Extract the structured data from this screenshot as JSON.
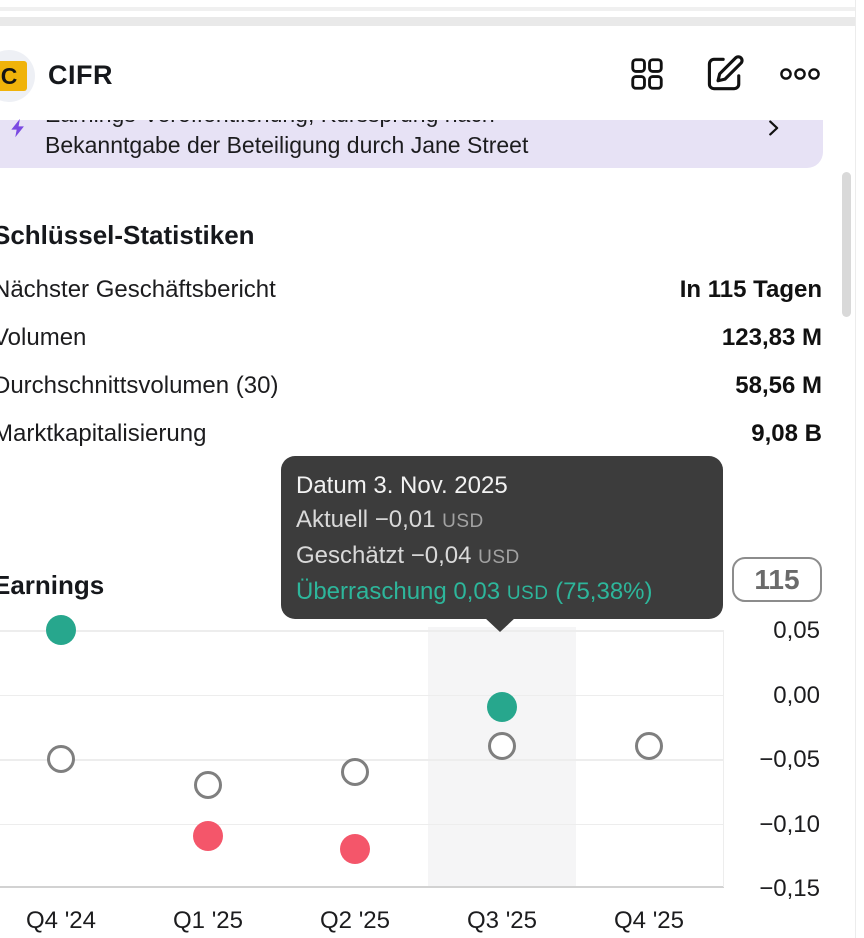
{
  "colors": {
    "beat_teal": "#27a78d",
    "miss_red": "#f4566a",
    "estimate_gray": "#7f7f7f",
    "banner_bg_lavender": "#e7e2f5",
    "bolt_purple": "#7b4ae2",
    "logo_yellow": "#f0b30a",
    "tooltip_bg": "#3c3c3c",
    "surprise_teal": "#2db69b"
  },
  "header": {
    "symbol": "CIFR",
    "logo_letter": "C",
    "icons": [
      "grid-icon",
      "edit-icon",
      "ellipsis-icon"
    ]
  },
  "banner": {
    "line1_clipped": "Earnings-Veröffentlichung, Kurssprung nach",
    "line2": "Bekanntgabe der Beteiligung durch Jane Street",
    "icons": [
      "lightning-icon",
      "chevron-right-icon"
    ]
  },
  "stats": {
    "title": "Schlüssel-Statistiken",
    "rows": [
      {
        "label": "Nächster Geschäftsbericht",
        "value": "In 115 Tagen"
      },
      {
        "label": "Volumen",
        "value": "123,83 M"
      },
      {
        "label": "Durchschnittsvolumen (30)",
        "value": "58,56 M"
      },
      {
        "label": "Marktkapitalisierung",
        "value": "9,08 B"
      }
    ]
  },
  "tooltip": {
    "date_line": "Datum 3. Nov. 2025",
    "actual_text": "Aktuell −0,01",
    "estimate_text": "Geschätzt −0,04",
    "surprise_text": "Überraschung 0,03",
    "surprise_pct": "(75,38%)",
    "currency": "USD"
  },
  "earnings_section": {
    "title": "Earnings",
    "days_badge": "115"
  },
  "chart_data": {
    "type": "scatter",
    "title": "Earnings",
    "categories": [
      "Q4 '24",
      "Q1 '25",
      "Q2 '25",
      "Q3 '25",
      "Q4 '25"
    ],
    "series": [
      {
        "name": "Geschätzt",
        "marker": "open-circle",
        "values": [
          -0.05,
          -0.07,
          -0.06,
          -0.04,
          -0.04
        ]
      },
      {
        "name": "Aktuell",
        "marker": "filled-circle",
        "values": [
          0.05,
          -0.11,
          -0.12,
          -0.01,
          null
        ]
      }
    ],
    "ytick_labels": [
      "0,05",
      "0,00",
      "−0,05",
      "−0,10",
      "−0,15"
    ],
    "ytick_values": [
      0.05,
      0,
      -0.05,
      -0.1,
      -0.15
    ],
    "ylim": [
      -0.175,
      0.06
    ],
    "grid": true,
    "legend": "none",
    "highlight_index": 3,
    "colors": {
      "beat": "#27a78d",
      "miss": "#f4566a",
      "estimate": "#7f7f7f",
      "highlight": "#f5f5f6"
    }
  }
}
